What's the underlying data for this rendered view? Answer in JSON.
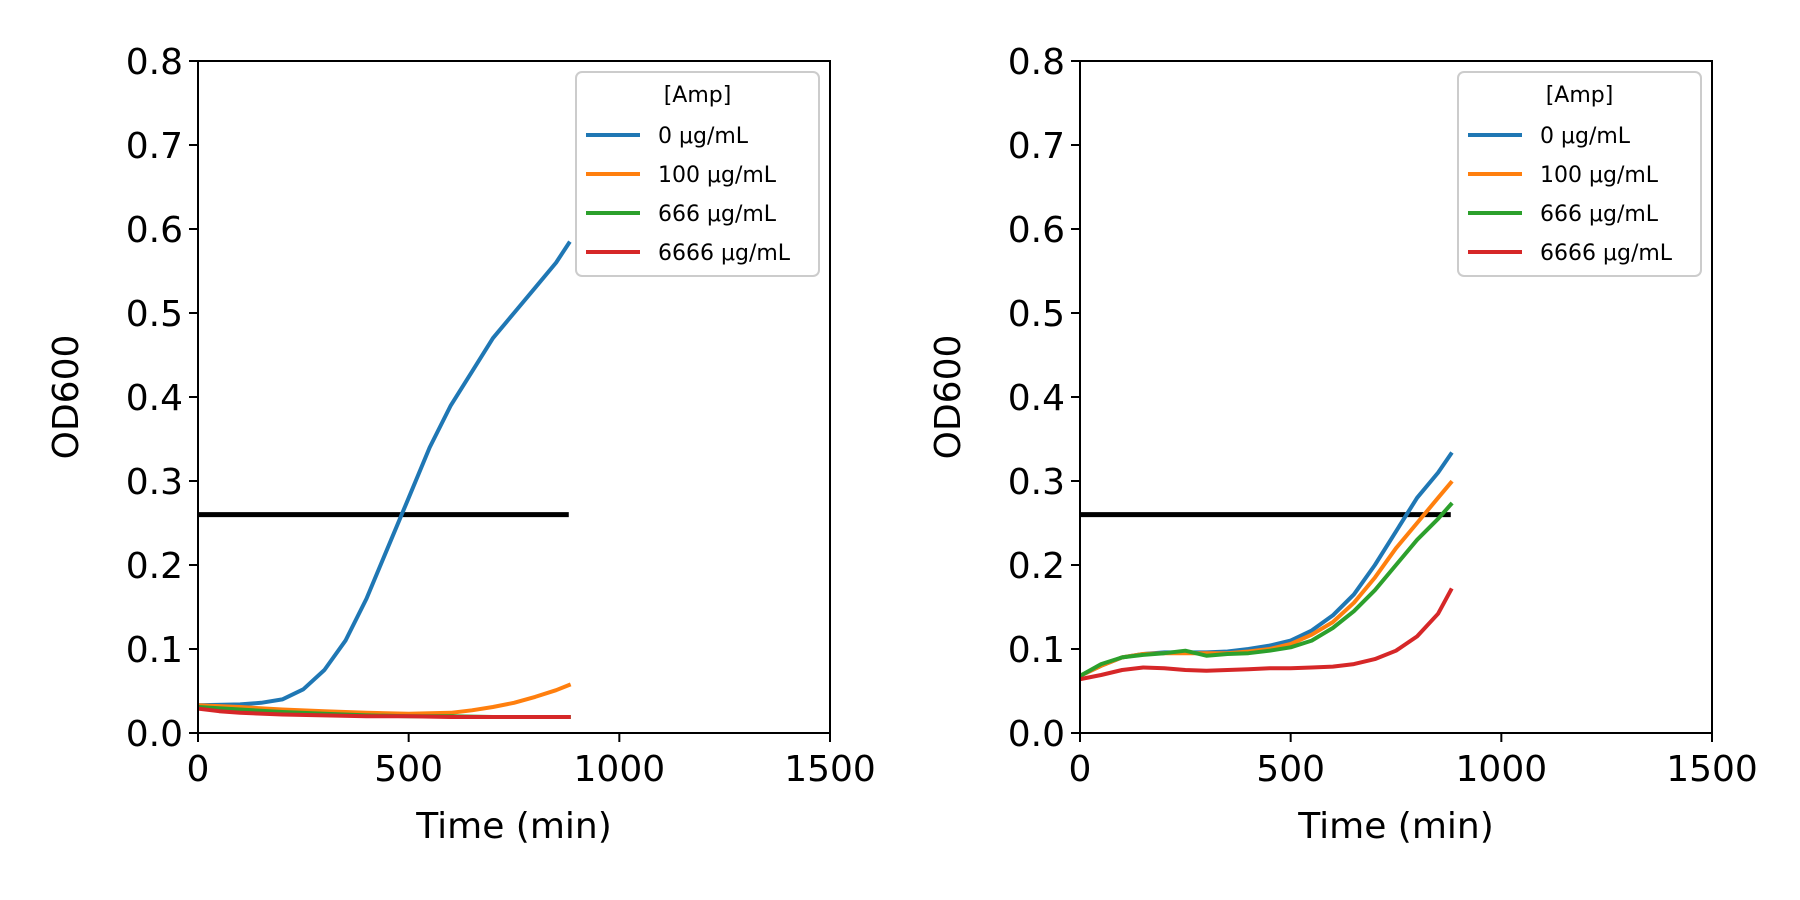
{
  "colors": {
    "c0": "#1f77b4",
    "c100": "#ff7f0e",
    "c666": "#2ca02c",
    "c6666": "#d62728",
    "threshold": "#000000"
  },
  "chart_data": [
    {
      "type": "line",
      "title": "",
      "xlabel": "Time (min)",
      "ylabel": "OD600",
      "xlim": [
        0,
        1500
      ],
      "ylim": [
        0,
        0.8
      ],
      "xticks": [
        "0",
        "500",
        "1000",
        "1500"
      ],
      "yticks": [
        "0.0",
        "0.1",
        "0.2",
        "0.3",
        "0.4",
        "0.5",
        "0.6",
        "0.7",
        "0.8"
      ],
      "grid": false,
      "legend": {
        "title": "[Amp]",
        "placement": "top-right"
      },
      "threshold": {
        "y": 0.26,
        "x": [
          0,
          880
        ]
      },
      "series": [
        {
          "name": "0 μg/mL",
          "color": "#1f77b4",
          "x": [
            0,
            100,
            150,
            200,
            250,
            300,
            350,
            400,
            450,
            500,
            550,
            600,
            650,
            700,
            750,
            800,
            850,
            880
          ],
          "y": [
            0.033,
            0.034,
            0.036,
            0.04,
            0.052,
            0.075,
            0.11,
            0.16,
            0.22,
            0.28,
            0.34,
            0.39,
            0.43,
            0.47,
            0.5,
            0.53,
            0.56,
            0.583
          ]
        },
        {
          "name": "100 μg/mL",
          "color": "#ff7f0e",
          "x": [
            0,
            100,
            200,
            300,
            400,
            500,
            600,
            650,
            700,
            750,
            800,
            850,
            880
          ],
          "y": [
            0.033,
            0.031,
            0.028,
            0.026,
            0.024,
            0.023,
            0.024,
            0.027,
            0.031,
            0.036,
            0.043,
            0.051,
            0.057
          ]
        },
        {
          "name": "666 μg/mL",
          "color": "#2ca02c",
          "x": [
            0,
            100,
            200,
            300,
            400,
            500,
            600,
            700,
            800,
            880
          ],
          "y": [
            0.031,
            0.028,
            0.025,
            0.023,
            0.021,
            0.02,
            0.02,
            0.019,
            0.019,
            0.019
          ]
        },
        {
          "name": "6666 μg/mL",
          "color": "#d62728",
          "x": [
            0,
            50,
            100,
            200,
            300,
            400,
            500,
            600,
            700,
            800,
            880
          ],
          "y": [
            0.029,
            0.026,
            0.024,
            0.022,
            0.021,
            0.02,
            0.02,
            0.019,
            0.019,
            0.019,
            0.019
          ]
        }
      ]
    },
    {
      "type": "line",
      "title": "",
      "xlabel": "Time (min)",
      "ylabel": "OD600",
      "xlim": [
        0,
        1500
      ],
      "ylim": [
        0,
        0.8
      ],
      "xticks": [
        "0",
        "500",
        "1000",
        "1500"
      ],
      "yticks": [
        "0.0",
        "0.1",
        "0.2",
        "0.3",
        "0.4",
        "0.5",
        "0.6",
        "0.7",
        "0.8"
      ],
      "grid": false,
      "legend": {
        "title": "[Amp]",
        "placement": "top-right"
      },
      "threshold": {
        "y": 0.26,
        "x": [
          0,
          880
        ]
      },
      "series": [
        {
          "name": "0 μg/mL",
          "color": "#1f77b4",
          "x": [
            0,
            50,
            100,
            150,
            200,
            250,
            300,
            350,
            400,
            450,
            500,
            550,
            600,
            650,
            700,
            750,
            800,
            850,
            880
          ],
          "y": [
            0.068,
            0.08,
            0.09,
            0.094,
            0.096,
            0.096,
            0.096,
            0.097,
            0.1,
            0.104,
            0.11,
            0.122,
            0.14,
            0.165,
            0.2,
            0.24,
            0.28,
            0.31,
            0.332
          ]
        },
        {
          "name": "100 μg/mL",
          "color": "#ff7f0e",
          "x": [
            0,
            50,
            100,
            150,
            200,
            250,
            300,
            350,
            400,
            450,
            500,
            550,
            600,
            650,
            700,
            750,
            800,
            850,
            880
          ],
          "y": [
            0.068,
            0.08,
            0.09,
            0.094,
            0.095,
            0.095,
            0.095,
            0.095,
            0.097,
            0.1,
            0.106,
            0.117,
            0.132,
            0.155,
            0.185,
            0.22,
            0.25,
            0.28,
            0.298
          ]
        },
        {
          "name": "666 μg/mL",
          "color": "#2ca02c",
          "x": [
            0,
            50,
            100,
            150,
            200,
            250,
            300,
            350,
            400,
            450,
            500,
            550,
            600,
            650,
            700,
            750,
            800,
            850,
            880
          ],
          "y": [
            0.068,
            0.082,
            0.09,
            0.093,
            0.095,
            0.098,
            0.092,
            0.094,
            0.095,
            0.098,
            0.102,
            0.11,
            0.125,
            0.145,
            0.17,
            0.2,
            0.23,
            0.255,
            0.272
          ]
        },
        {
          "name": "6666 μg/mL",
          "color": "#d62728",
          "x": [
            0,
            50,
            100,
            150,
            200,
            250,
            300,
            350,
            400,
            450,
            500,
            550,
            600,
            650,
            700,
            750,
            800,
            850,
            880
          ],
          "y": [
            0.064,
            0.069,
            0.075,
            0.078,
            0.077,
            0.075,
            0.074,
            0.075,
            0.076,
            0.077,
            0.077,
            0.078,
            0.079,
            0.082,
            0.088,
            0.098,
            0.115,
            0.142,
            0.17
          ]
        }
      ]
    }
  ]
}
